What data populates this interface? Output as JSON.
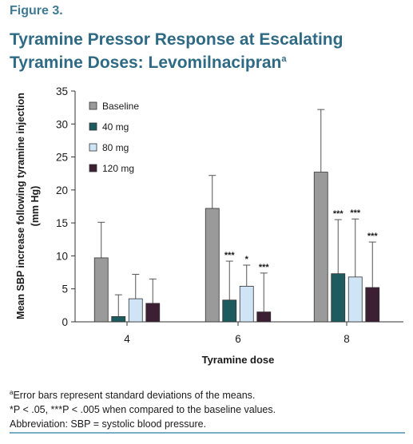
{
  "figure_label": "Figure 3.",
  "title_main": "Tyramine Pressor Response at Escalating Tyramine Doses: Levomilnacipran",
  "title_sup": "a",
  "footnotes": {
    "line1_sup": "a",
    "line1": "Error bars represent standard deviations of the means.",
    "line2": "*P < .05, ***P < .005 when compared to the baseline values.",
    "line3": "Abbreviation: SBP = systolic blood pressure."
  },
  "colors": {
    "baseline": "#9a9a9a",
    "40mg": "#1e5b5e",
    "80mg": "#cfe4f5",
    "120mg": "#3c1f33",
    "title": "#2f6a84",
    "rule": "#7aaec2"
  },
  "chart_data": {
    "type": "bar",
    "xlabel": "Tyramine dose",
    "ylabel_line1": "Mean SBP increase following tyramine injection",
    "ylabel_line2": "(mm Hg)",
    "ylim": [
      0,
      35
    ],
    "yticks": [
      0,
      5,
      10,
      15,
      20,
      25,
      30,
      35
    ],
    "categories": [
      "4",
      "6",
      "8"
    ],
    "legend_position": "top-left",
    "series": [
      {
        "name": "Baseline",
        "color": "#9a9a9a",
        "values": [
          9.7,
          17.2,
          22.7
        ],
        "errors": [
          5.4,
          5.0,
          9.5
        ],
        "significance": [
          "",
          "",
          ""
        ]
      },
      {
        "name": "40 mg",
        "color": "#1e5b5e",
        "values": [
          0.8,
          3.3,
          7.3
        ],
        "errors": [
          3.3,
          5.9,
          8.2
        ],
        "significance": [
          "",
          "***",
          "***"
        ]
      },
      {
        "name": "80 mg",
        "color": "#cfe4f5",
        "values": [
          3.5,
          5.4,
          6.8
        ],
        "errors": [
          3.7,
          3.2,
          8.8
        ],
        "significance": [
          "",
          "*",
          "***"
        ]
      },
      {
        "name": "120 mg",
        "color": "#3c1f33",
        "values": [
          2.8,
          1.5,
          5.2
        ],
        "errors": [
          3.7,
          5.9,
          6.9
        ],
        "significance": [
          "",
          "***",
          "***"
        ]
      }
    ]
  }
}
